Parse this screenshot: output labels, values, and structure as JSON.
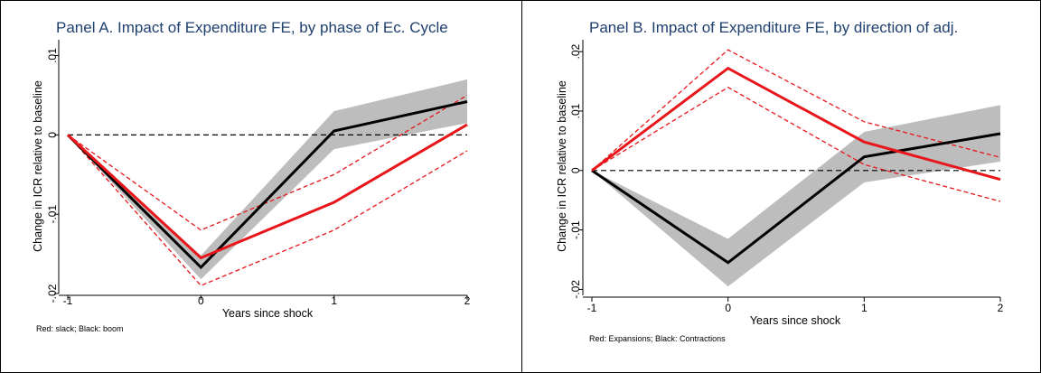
{
  "chart_data": [
    {
      "type": "line",
      "title": "Panel A. Impact of Expenditure FE, by phase of Ec. Cycle",
      "xlabel": "Years since shock",
      "ylabel": "Change in ICR relative to baseline",
      "x_ticks": [
        "-1",
        "0",
        "1",
        "2"
      ],
      "y_ticks": [
        ".01",
        "0",
        "-.01",
        "-.02"
      ],
      "xlim": [
        -1,
        2
      ],
      "ylim": [
        -0.02,
        0.012
      ],
      "note": "Red: slack; Black: boom",
      "reference_line_y": 0,
      "x": [
        -1,
        0,
        1,
        2
      ],
      "series": [
        {
          "color": "#000000",
          "values": [
            0,
            -0.0167,
            0.0005,
            0.0042
          ],
          "ci_lower": [
            0,
            -0.0182,
            -0.0018,
            0.0015
          ],
          "ci_upper": [
            0,
            -0.0152,
            0.003,
            0.007
          ],
          "ci_style": "shaded",
          "ci_color": "#bdbdbd"
        },
        {
          "color": "#e8161b",
          "values": [
            0,
            -0.0155,
            -0.0085,
            0.0013
          ],
          "ci_lower": [
            0,
            -0.019,
            -0.012,
            -0.002
          ],
          "ci_upper": [
            0,
            -0.012,
            -0.005,
            0.005
          ],
          "ci_style": "dashed"
        }
      ]
    },
    {
      "type": "line",
      "title": "Panel B. Impact of Expenditure FE, by direction of adj.",
      "xlabel": "Years since shock",
      "ylabel": "Change in ICR relative to baseline",
      "x_ticks": [
        "-1",
        "0",
        "1",
        "2"
      ],
      "y_ticks": [
        ".02",
        ".01",
        "0",
        "-.01",
        "-.02"
      ],
      "xlim": [
        -1,
        2
      ],
      "ylim": [
        -0.021,
        0.022
      ],
      "note": "Red: Expansions; Black: Contractions",
      "reference_line_y": 0,
      "x": [
        -1,
        0,
        1,
        2
      ],
      "series": [
        {
          "color": "#000000",
          "values": [
            0,
            -0.0155,
            0.0023,
            0.0062
          ],
          "ci_lower": [
            0,
            -0.0195,
            -0.002,
            0.0015
          ],
          "ci_upper": [
            0,
            -0.0115,
            0.0065,
            0.011
          ],
          "ci_style": "shaded",
          "ci_color": "#bdbdbd"
        },
        {
          "color": "#e8161b",
          "values": [
            0,
            0.0172,
            0.0048,
            -0.0015
          ],
          "ci_lower": [
            0,
            0.014,
            0.001,
            -0.0052
          ],
          "ci_upper": [
            0,
            0.0203,
            0.0082,
            0.0022
          ],
          "ci_style": "dashed"
        }
      ]
    }
  ]
}
